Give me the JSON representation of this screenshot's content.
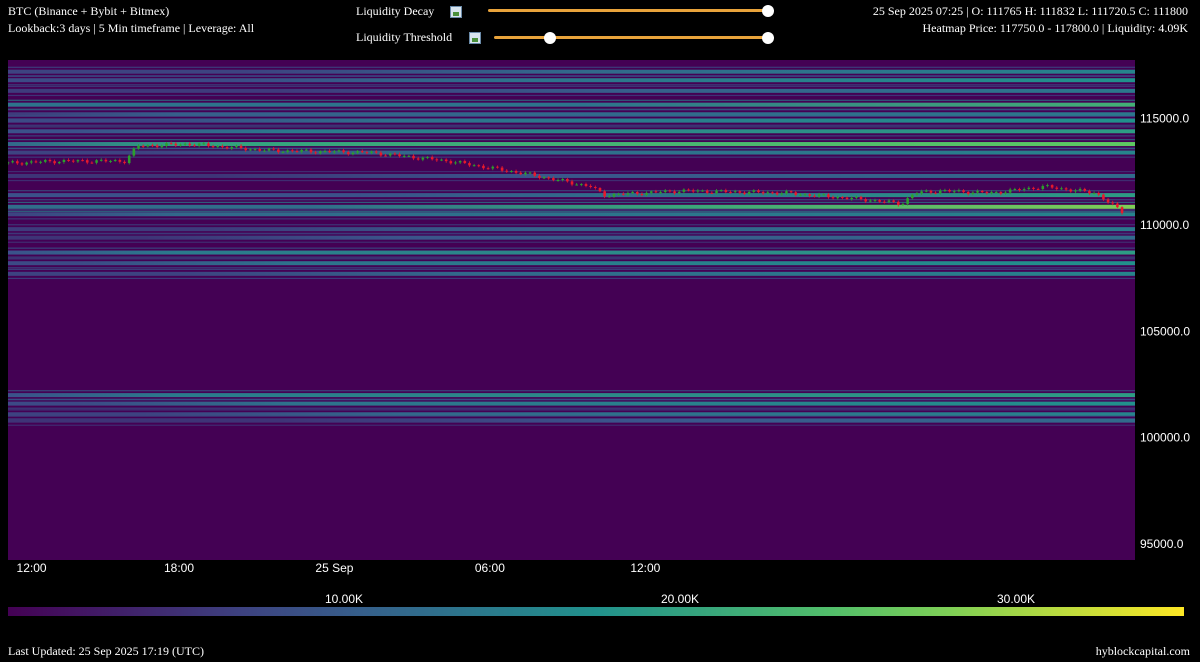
{
  "header": {
    "title": "BTC (Binance + Bybit + Bitmex)",
    "lookback": "Lookback:3 days | 5 Min timeframe | Leverage: All",
    "ohlc": "25 Sep 2025 07:25 | O: 111765 H: 111832 L: 111720.5 C: 111800",
    "heatmap_info": "Heatmap Price: 117750.0 - 117800.0 | Liquidity: 4.09K"
  },
  "controls": {
    "decay_label": "Liquidity Decay",
    "threshold_label": "Liquidity Threshold",
    "decay_value": 1.0,
    "threshold_low": 0.2,
    "threshold_high": 1.0
  },
  "footer": {
    "updated": "Last Updated: 25 Sep 2025 17:19 (UTC)",
    "brand": "hyblockcapital.com"
  },
  "colors": {
    "background": "#000000",
    "heatmap_base": "#440154",
    "slider_track": "#e8a33b",
    "candle_up": "#2ca02c",
    "candle_down": "#e8192c"
  },
  "chart_data": {
    "type": "heatmap",
    "title": "",
    "x_ticks": [
      "12:00",
      "18:00",
      "25 Sep",
      "06:00",
      "12:00"
    ],
    "y_ticks": [
      "115000.0",
      "110000.0",
      "105000.0",
      "100000.0",
      "95000.0"
    ],
    "y_tick_values": [
      115000,
      110000,
      105000,
      100000,
      95000
    ],
    "ylim": [
      94250,
      117750
    ],
    "colorbar": {
      "colormap": "viridis",
      "range": [
        0,
        35000
      ],
      "ticks": [
        "10.00K",
        "20.00K",
        "30.00K"
      ],
      "tick_values": [
        10000,
        20000,
        30000
      ]
    },
    "price_series": {
      "hours_from_start": [
        0,
        2,
        4.5,
        5,
        7,
        10,
        14,
        17,
        20,
        22.5,
        23,
        26,
        30,
        33,
        34.5,
        35,
        36,
        38,
        40,
        42,
        43
      ],
      "price": [
        112900,
        113000,
        113000,
        113700,
        113800,
        113500,
        113400,
        113000,
        112400,
        111800,
        111400,
        111600,
        111500,
        111200,
        111000,
        111500,
        111600,
        111500,
        111800,
        111500,
        110600
      ]
    },
    "liquidity_bands": [
      {
        "price": 117200,
        "intensity": 0.45,
        "from": 0.35
      },
      {
        "price": 116800,
        "intensity": 0.5,
        "from": 0.3
      },
      {
        "price": 116300,
        "intensity": 0.4,
        "from": 0.4
      },
      {
        "price": 115650,
        "intensity": 0.85,
        "from": 0.85
      },
      {
        "price": 115200,
        "intensity": 0.4,
        "from": 0.0
      },
      {
        "price": 114900,
        "intensity": 0.5,
        "from": 0.2
      },
      {
        "price": 114400,
        "intensity": 0.55,
        "from": 0.1
      },
      {
        "price": 113800,
        "intensity": 0.75,
        "from": 0.0
      },
      {
        "price": 113400,
        "intensity": 0.45,
        "from": 0.2
      },
      {
        "price": 112300,
        "intensity": 0.35,
        "from": 0.3
      },
      {
        "price": 111400,
        "intensity": 0.55,
        "from": 0.5
      },
      {
        "price": 110850,
        "intensity": 0.8,
        "from": 0.45
      },
      {
        "price": 110500,
        "intensity": 0.45,
        "from": 0.0
      },
      {
        "price": 109800,
        "intensity": 0.4,
        "from": 0.3
      },
      {
        "price": 109400,
        "intensity": 0.35,
        "from": 0.2
      },
      {
        "price": 108700,
        "intensity": 0.55,
        "from": 0.0
      },
      {
        "price": 108200,
        "intensity": 0.5,
        "from": 0.1
      },
      {
        "price": 107700,
        "intensity": 0.45,
        "from": 0.25
      },
      {
        "price": 102000,
        "intensity": 0.55,
        "from": 0.0
      },
      {
        "price": 101600,
        "intensity": 0.5,
        "from": 0.1
      },
      {
        "price": 101100,
        "intensity": 0.45,
        "from": 0.2
      },
      {
        "price": 100800,
        "intensity": 0.35,
        "from": 0.4
      }
    ]
  }
}
